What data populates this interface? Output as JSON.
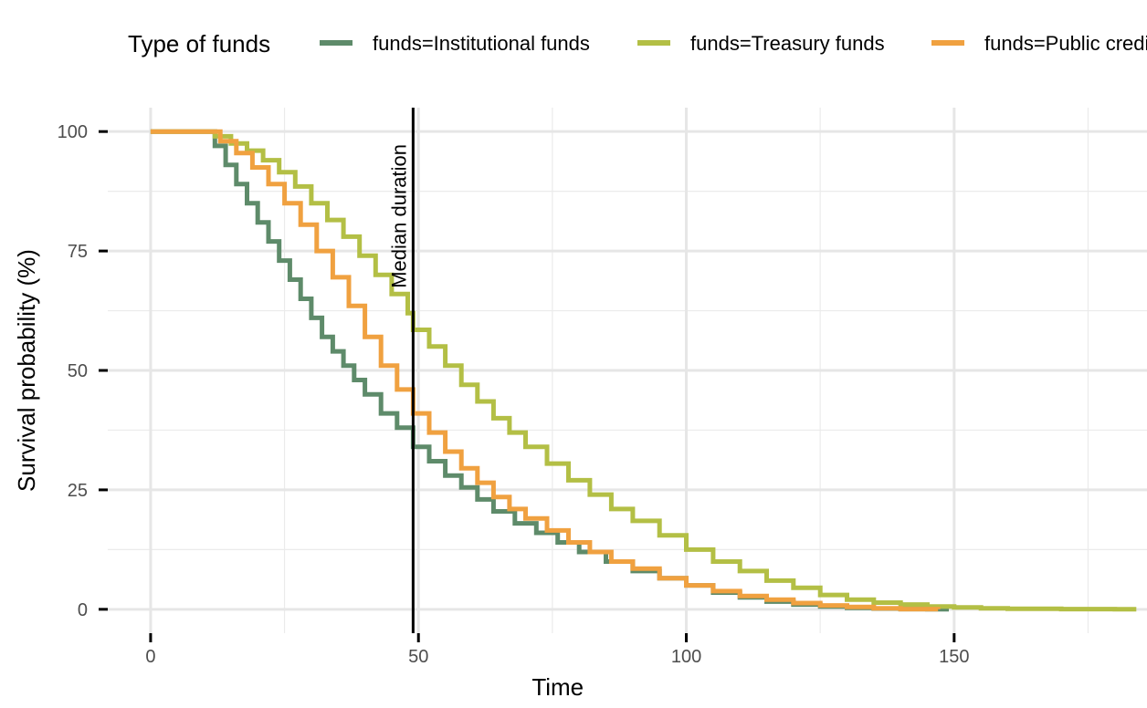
{
  "chart_data": {
    "type": "line",
    "subtype": "step",
    "title": "",
    "xlabel": "Time",
    "ylabel": "Survival probability (%)",
    "xlim": [
      -8,
      186
    ],
    "ylim": [
      -5,
      105
    ],
    "x_ticks": [
      0,
      50,
      100,
      150
    ],
    "y_ticks": [
      0,
      25,
      50,
      75,
      100
    ],
    "grid": true,
    "legend": {
      "title": "Type of funds",
      "placement": "top"
    },
    "vline": {
      "x": 49,
      "label": "Median duration",
      "color": "#000000"
    },
    "series": [
      {
        "name": "funds=Institutional funds",
        "color": "#5e8b6a",
        "x": [
          0,
          10,
          12,
          14,
          16,
          18,
          20,
          22,
          24,
          26,
          28,
          30,
          32,
          34,
          36,
          38,
          40,
          43,
          46,
          49,
          52,
          55,
          58,
          61,
          64,
          68,
          72,
          76,
          80,
          85,
          90,
          95,
          100,
          105,
          110,
          115,
          120,
          125,
          130,
          135,
          140,
          145,
          149
        ],
        "values": [
          100,
          100,
          97,
          93,
          89,
          85,
          81,
          77,
          73,
          69,
          65,
          61,
          57,
          54,
          51,
          48,
          45,
          41,
          38,
          34,
          31,
          28,
          25.5,
          23,
          20.5,
          18,
          16,
          14,
          12,
          10,
          8,
          6.5,
          5,
          3.5,
          2.5,
          1.6,
          1,
          0.6,
          0.3,
          0.15,
          0.05,
          0,
          0
        ]
      },
      {
        "name": "funds=Treasury funds",
        "color": "#b3bf45",
        "x": [
          0,
          10,
          12,
          15,
          18,
          21,
          24,
          27,
          30,
          33,
          36,
          39,
          42,
          45,
          48,
          49,
          52,
          55,
          58,
          61,
          64,
          67,
          70,
          74,
          78,
          82,
          86,
          90,
          95,
          100,
          105,
          110,
          115,
          120,
          125,
          130,
          135,
          140,
          145,
          150,
          155,
          160,
          170,
          180,
          184
        ],
        "values": [
          100,
          100,
          99,
          97.5,
          96,
          94,
          91.5,
          88.5,
          85,
          81.5,
          78,
          74,
          70,
          66,
          62,
          58.5,
          55,
          51,
          47,
          43.5,
          40,
          37,
          34,
          30.5,
          27,
          24,
          21,
          18.5,
          15.5,
          12.5,
          10,
          8,
          6,
          4.5,
          3,
          2,
          1.4,
          1,
          0.6,
          0.4,
          0.2,
          0.1,
          0.05,
          0,
          0
        ]
      },
      {
        "name": "funds=Public credit funds",
        "color": "#f0a140",
        "x": [
          0,
          10,
          13,
          16,
          19,
          22,
          25,
          28,
          31,
          34,
          37,
          40,
          43,
          46,
          49,
          52,
          55,
          58,
          61,
          64,
          67,
          70,
          74,
          78,
          82,
          86,
          90,
          95,
          100,
          105,
          110,
          115,
          120,
          125,
          130,
          135,
          140,
          147
        ],
        "values": [
          100,
          100,
          98,
          95.5,
          92.5,
          89,
          85,
          80.5,
          75,
          69.5,
          63.5,
          57,
          51,
          46,
          41,
          37,
          33,
          29.5,
          26.5,
          23.5,
          21,
          19,
          16.5,
          14,
          12,
          10,
          8.5,
          6.5,
          5,
          3.8,
          2.8,
          2,
          1.3,
          0.8,
          0.5,
          0.2,
          0.05,
          0
        ]
      }
    ]
  }
}
